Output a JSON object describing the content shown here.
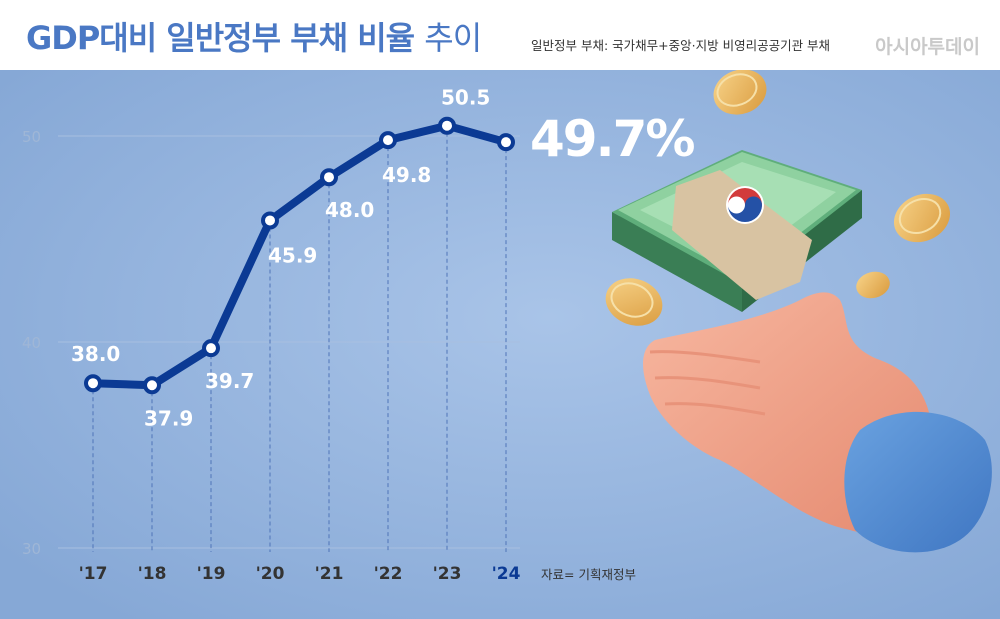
{
  "header": {
    "title_bold": "GDP대비 일반정부 부채 비율",
    "title_light": "추이",
    "subtitle": "일반정부 부채: 국가채무+중앙·지방 비영리공공기관 부채",
    "brand": "아시아투데이"
  },
  "source": "자료= 기획재정부",
  "chart_data": {
    "type": "line",
    "title": "GDP대비 일반정부 부채 비율 추이",
    "categories": [
      "'17",
      "'18",
      "'19",
      "'20",
      "'21",
      "'22",
      "'23",
      "'24"
    ],
    "values": [
      38.0,
      37.9,
      39.7,
      45.9,
      48.0,
      49.8,
      50.5,
      49.7
    ],
    "data_labels": [
      "38.0",
      "37.9",
      "39.7",
      "45.9",
      "48.0",
      "49.8",
      "50.5",
      "49.7%"
    ],
    "ylim": [
      30,
      50
    ],
    "yticks": [
      30,
      40,
      50
    ],
    "grid": true,
    "xlabel": "",
    "ylabel": "",
    "colors": {
      "line": "#0b3a94",
      "marker_fill": "#ffffff",
      "label": "#ffffff",
      "tick": "#9fb6d6",
      "background": "#8fb1dc"
    }
  }
}
